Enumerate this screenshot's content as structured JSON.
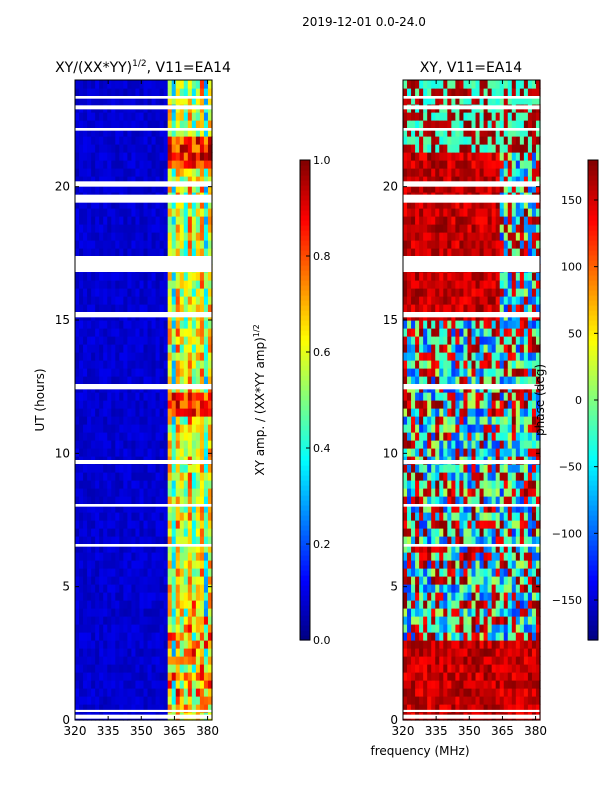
{
  "figure": {
    "suptitle": "2019-12-01 0.0-24.0",
    "xlabel_shared": "frequency (MHz)"
  },
  "chart_data": [
    {
      "type": "heatmap",
      "title": "XY/(XX*YY)",
      "title_exponent": "1/2",
      "title_suffix": ", V11=EA14",
      "ylabel": "UT (hours)",
      "x": {
        "min": 320,
        "max": 382,
        "ticks": [
          320,
          335,
          350,
          365,
          380
        ]
      },
      "y": {
        "min": 0,
        "max": 24,
        "ticks": [
          0,
          5,
          10,
          15,
          20
        ]
      },
      "colormap": "jet",
      "colorbar": {
        "label": "XY amp. / (XX*YY amp)",
        "label_exponent": "1/2",
        "min": 0.0,
        "max": 1.0,
        "ticks": [
          "0.0",
          "0.2",
          "0.4",
          "0.6",
          "0.8",
          "1.0"
        ],
        "tick_values": [
          0.0,
          0.2,
          0.4,
          0.6,
          0.8,
          1.0
        ]
      },
      "flagged_ut_bands": [
        [
          0.05,
          0.2
        ],
        [
          0.3,
          0.38
        ],
        [
          9.6,
          9.75
        ],
        [
          16.8,
          17.4
        ],
        [
          19.4,
          19.7
        ],
        [
          20.0,
          20.2
        ],
        [
          22.1,
          22.2
        ],
        [
          22.9,
          23.05
        ],
        [
          23.3,
          23.4
        ],
        [
          15.1,
          15.3
        ],
        [
          12.4,
          12.6
        ],
        [
          6.5,
          6.6
        ],
        [
          8.0,
          8.1
        ]
      ],
      "bright_features": "RFI-dominated channels above ~362 MHz; amplitude mostly 0.0-0.15 elsewhere"
    },
    {
      "type": "heatmap",
      "title": "XY, V11=EA14",
      "x": {
        "min": 320,
        "max": 382,
        "ticks": [
          320,
          335,
          350,
          365,
          380
        ]
      },
      "y": {
        "min": 0,
        "max": 24,
        "ticks": [
          0,
          5,
          10,
          15,
          20
        ]
      },
      "colormap": "jet",
      "colorbar": {
        "label": "phase (deg)",
        "min": -180,
        "max": 180,
        "ticks": [
          "150",
          "100",
          "50",
          "0",
          "−50",
          "−100",
          "−150"
        ],
        "tick_values": [
          150,
          100,
          50,
          0,
          -50,
          -100,
          -150
        ]
      },
      "flagged_ut_bands": [
        [
          0.05,
          0.2
        ],
        [
          0.3,
          0.38
        ],
        [
          9.6,
          9.75
        ],
        [
          16.8,
          17.4
        ],
        [
          19.4,
          19.7
        ],
        [
          20.0,
          20.2
        ],
        [
          22.1,
          22.2
        ],
        [
          22.9,
          23.05
        ],
        [
          23.3,
          23.4
        ],
        [
          15.1,
          15.3
        ],
        [
          12.4,
          12.6
        ],
        [
          6.5,
          6.6
        ],
        [
          8.0,
          8.1
        ]
      ],
      "phase_regions": "mostly ~+150 deg (red) 15-21 h and 0-3 h; mixed -50..+50 deg elsewhere"
    }
  ]
}
